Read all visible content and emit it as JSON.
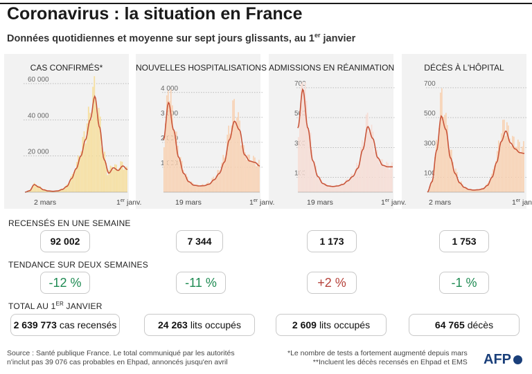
{
  "title": "Coronavirus : la situation en France",
  "subtitle": {
    "main": "Données quotidiennes et moyenne sur sept jours glissants, au 1",
    "sup": "er",
    "end": " janvier"
  },
  "rows": {
    "weekly": "RECENSÉS EN UNE SEMAINE",
    "trend": "TENDANCE SUR DEUX SEMAINES",
    "total_main": "TOTAL AU 1",
    "total_sup": "ER",
    "total_end": " JANVIER"
  },
  "panels": [
    {
      "title": "CAS CONFIRMÉS*",
      "weekly": "92 002",
      "trend": "-12 %",
      "total": "2 639 773",
      "total_suffix": "cas recensés"
    },
    {
      "title": "NOUVELLES HOSPITALISATIONS",
      "weekly": "7 344",
      "trend": "-11 %",
      "total": "24 263",
      "total_suffix": "lits occupés"
    },
    {
      "title": "ADMISSIONS EN RÉANIMATION",
      "weekly": "1 173",
      "trend": "+2 %",
      "total": "2 609",
      "total_suffix": "lits occupés"
    },
    {
      "title": "DÉCÈS À L'HÔPITAL",
      "weekly": "1 753",
      "trend": "-1 %",
      "total": "64 765",
      "total_suffix": "décès"
    }
  ],
  "footer": {
    "source1": "Source : Santé publique France. Le total communiqué par les autorités",
    "source2": "n'inclut pas 39 076 cas probables en Ehpad, annoncés jusqu'en avril",
    "note1": "*Le nombre de tests a fortement augmenté depuis mars",
    "note2": "**Incluent les décès recensés en Ehpad et EMS",
    "logo": "AFP"
  },
  "colors": {
    "avg_line": "#c8553a",
    "down": "#1e8a52",
    "up": "#b5413a"
  },
  "chart_data": [
    {
      "type": "area",
      "title": "CAS CONFIRMÉS*",
      "ylim": [
        0,
        68000
      ],
      "yticks": [
        20000,
        40000,
        60000
      ],
      "ytick_labels": [
        "20 000",
        "40 000",
        "60 000"
      ],
      "xtick_labels": [
        "2 mars",
        "1er janv."
      ],
      "x_start": "2020-03-02",
      "x_end": "2021-01-01",
      "bar_color": "#f6dfa0",
      "daily_anchor_values": [
        0,
        1000,
        4500,
        3000,
        1500,
        800,
        600,
        800,
        1800,
        3500,
        8000,
        14000,
        22000,
        32000,
        42000,
        55000,
        40000,
        20000,
        11000,
        14000,
        13000,
        15000,
        12000
      ],
      "avg_anchor_values": [
        0,
        800,
        4200,
        2800,
        1300,
        700,
        500,
        700,
        1500,
        3200,
        7500,
        13000,
        20000,
        29000,
        40000,
        53000,
        36000,
        18000,
        10500,
        13500,
        12000,
        14500,
        12500
      ]
    },
    {
      "type": "area",
      "title": "NOUVELLES HOSPITALISATIONS",
      "ylim": [
        0,
        4300
      ],
      "yticks": [
        1000,
        2000,
        3000,
        4000
      ],
      "ytick_labels": [
        "1 000",
        "2 000",
        "3 000",
        "4 000"
      ],
      "xtick_labels": [
        "19 mars",
        "1er janv."
      ],
      "x_start": "2020-03-19",
      "x_end": "2021-01-01",
      "bar_color": "#f8d2b4",
      "daily_anchor_values": [
        2200,
        4100,
        2600,
        1500,
        800,
        450,
        300,
        260,
        280,
        350,
        550,
        800,
        1300,
        2300,
        3300,
        2700,
        1600,
        1300,
        1250,
        1100
      ],
      "avg_anchor_values": [
        2100,
        3600,
        2500,
        1400,
        750,
        420,
        280,
        250,
        260,
        320,
        500,
        750,
        1200,
        2100,
        2850,
        2500,
        1500,
        1250,
        1200,
        1050
      ]
    },
    {
      "type": "area",
      "title": "ADMISSIONS EN RÉANIMATION",
      "ylim": [
        0,
        760
      ],
      "yticks": [
        100,
        300,
        500,
        700
      ],
      "ytick_labels": [
        "100",
        "300",
        "500",
        "700"
      ],
      "xtick_labels": [
        "19 mars",
        "1er janv."
      ],
      "x_start": "2020-03-19",
      "x_end": "2021-01-01",
      "bar_color": "#f6ddd5",
      "daily_anchor_values": [
        450,
        740,
        450,
        220,
        110,
        60,
        45,
        40,
        45,
        55,
        80,
        110,
        170,
        300,
        470,
        380,
        240,
        190,
        175,
        170
      ],
      "avg_anchor_values": [
        430,
        690,
        430,
        210,
        105,
        58,
        42,
        38,
        42,
        52,
        76,
        105,
        160,
        285,
        440,
        360,
        230,
        180,
        170,
        170
      ]
    },
    {
      "type": "area",
      "title": "DÉCÈS À L'HÔPITAL",
      "ylim": [
        0,
        760
      ],
      "yticks": [
        100,
        300,
        500,
        700
      ],
      "ytick_labels": [
        "100",
        "300",
        "500",
        "700"
      ],
      "xtick_labels": [
        "2 mars",
        "1er janv."
      ],
      "x_start": "2020-03-02",
      "x_end": "2021-01-01",
      "bar_color": "#f8d2b4",
      "daily_anchor_values": [
        0,
        80,
        320,
        620,
        450,
        250,
        140,
        70,
        35,
        20,
        15,
        18,
        25,
        50,
        110,
        220,
        380,
        460,
        350,
        320,
        300,
        290
      ],
      "avg_anchor_values": [
        0,
        70,
        280,
        510,
        420,
        230,
        125,
        62,
        32,
        18,
        14,
        16,
        22,
        45,
        100,
        200,
        340,
        410,
        330,
        290,
        265,
        260
      ]
    }
  ]
}
